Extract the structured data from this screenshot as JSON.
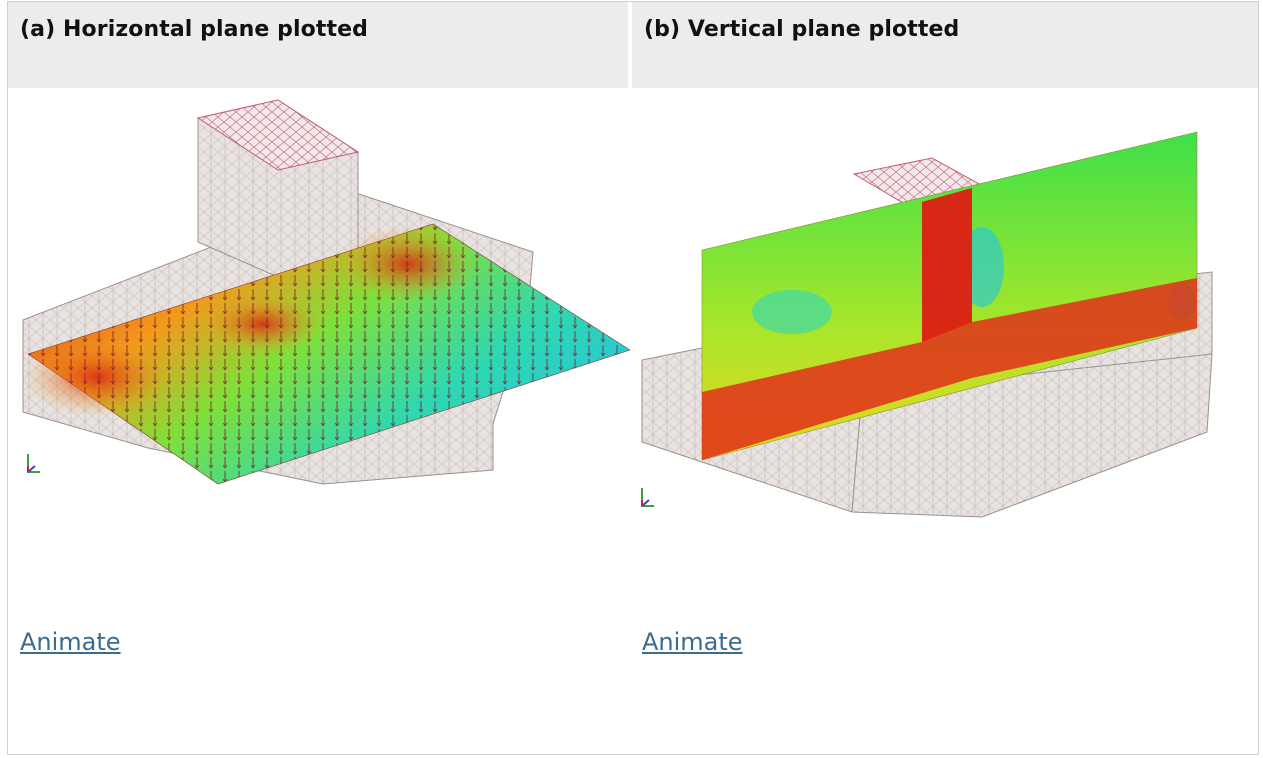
{
  "panels": {
    "left": {
      "title": "(a) Horizontal plane plotted",
      "link": "Animate"
    },
    "right": {
      "title": "(b) Vertical plane plotted",
      "link": "Animate"
    }
  },
  "icons": {
    "axes": "axes-triad-icon"
  }
}
